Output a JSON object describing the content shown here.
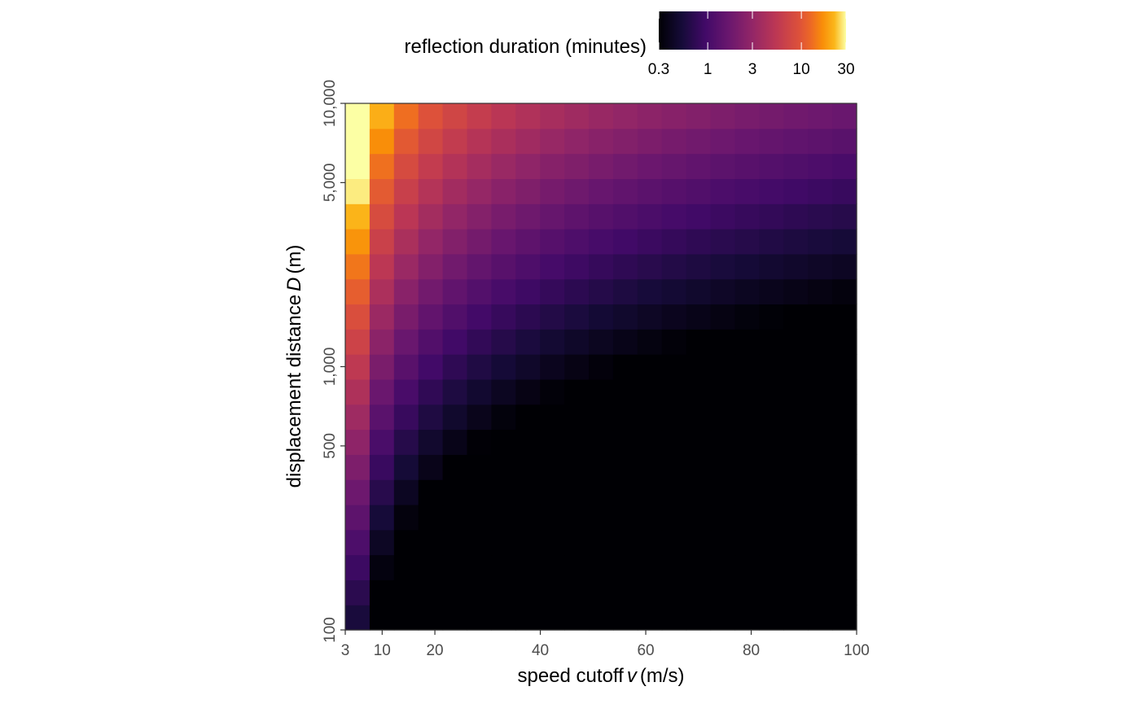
{
  "chart_data": {
    "type": "heatmap",
    "x": {
      "label_prefix": "speed cutoff",
      "label_var": "v",
      "label_unit": "(m/s)",
      "scale": "linear",
      "range": [
        3,
        100
      ],
      "ticks": [
        3,
        10,
        20,
        40,
        60,
        80,
        100
      ],
      "tick_labels": [
        "3",
        "10",
        "20",
        "40",
        "60",
        "80",
        "100"
      ]
    },
    "y": {
      "label_prefix": "displacement distance",
      "label_var": "D",
      "label_unit": "(m)",
      "scale": "log",
      "range": [
        100,
        10000
      ],
      "ticks": [
        100,
        500,
        1000,
        5000,
        10000
      ],
      "tick_labels": [
        "100",
        "500",
        "1,000",
        "5,000",
        "10,000"
      ]
    },
    "color": {
      "title": "reflection duration (minutes)",
      "palette": "inferno",
      "scale": "log",
      "range": [
        0.3,
        30
      ],
      "ticks": [
        0.3,
        1,
        3,
        10,
        30
      ],
      "tick_labels": [
        "0.3",
        "1",
        "3",
        "10",
        "30"
      ]
    },
    "grid": {
      "nx": 21,
      "ny": 21,
      "x_min": 3,
      "x_max": 100,
      "y_min": 100,
      "y_max": 10000
    },
    "cell_value": "D / v / 60 (minutes), cells below 0.3 min rendered black",
    "grid_lines": false
  }
}
